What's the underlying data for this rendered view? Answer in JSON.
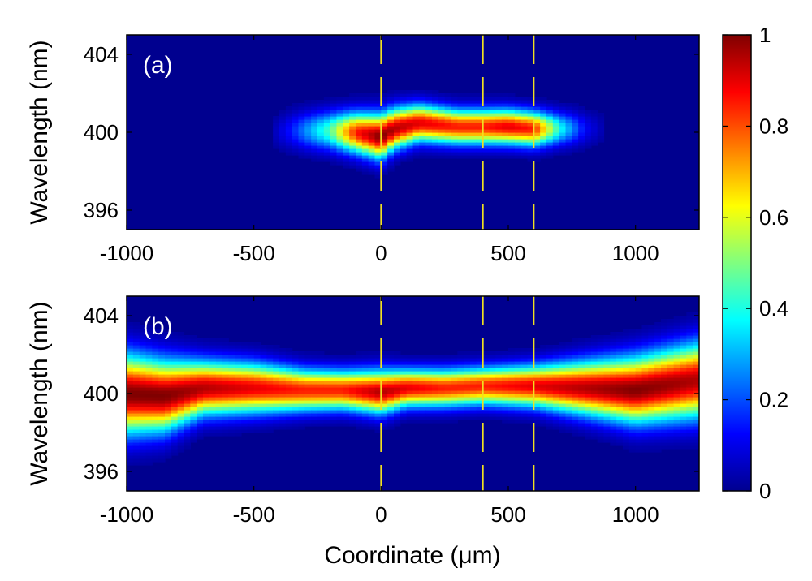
{
  "chart_data": [
    {
      "type": "heatmap",
      "panel_label": "(a)",
      "xlabel": "",
      "ylabel": "Wavelength (nm)",
      "xlim": [
        -1000,
        1250
      ],
      "ylim": [
        395,
        405
      ],
      "xticks": [
        -1000,
        -500,
        0,
        500,
        1000
      ],
      "yticks": [
        396,
        400,
        404
      ],
      "markers_x": [
        0,
        400,
        600
      ],
      "series": [
        {
          "name": "ridge",
          "points": [
            {
              "x": -450,
              "center": 400.0,
              "width": 0.8,
              "amp": 0.0
            },
            {
              "x": -350,
              "center": 400.1,
              "width": 0.9,
              "amp": 0.15
            },
            {
              "x": -200,
              "center": 400.1,
              "width": 0.95,
              "amp": 0.45
            },
            {
              "x": -100,
              "center": 400.0,
              "width": 1.0,
              "amp": 0.85
            },
            {
              "x": 0,
              "center": 399.8,
              "width": 1.1,
              "amp": 1.0
            },
            {
              "x": 50,
              "center": 400.2,
              "width": 1.0,
              "amp": 0.95
            },
            {
              "x": 150,
              "center": 400.5,
              "width": 0.9,
              "amp": 0.9
            },
            {
              "x": 300,
              "center": 400.3,
              "width": 0.85,
              "amp": 0.85
            },
            {
              "x": 400,
              "center": 400.3,
              "width": 0.85,
              "amp": 0.85
            },
            {
              "x": 500,
              "center": 400.3,
              "width": 0.85,
              "amp": 0.9
            },
            {
              "x": 600,
              "center": 400.2,
              "width": 0.85,
              "amp": 0.85
            },
            {
              "x": 700,
              "center": 400.2,
              "width": 0.8,
              "amp": 0.4
            },
            {
              "x": 800,
              "center": 400.2,
              "width": 0.8,
              "amp": 0.12
            },
            {
              "x": 900,
              "center": 400.2,
              "width": 0.8,
              "amp": 0.0
            }
          ]
        }
      ]
    },
    {
      "type": "heatmap",
      "panel_label": "(b)",
      "xlabel": "Coordinate (μm)",
      "ylabel": "Wavelength (nm)",
      "xlim": [
        -1000,
        1250
      ],
      "ylim": [
        395,
        405
      ],
      "xticks": [
        -1000,
        -500,
        0,
        500,
        1000
      ],
      "yticks": [
        396,
        400,
        404
      ],
      "markers_x": [
        0,
        400,
        600
      ],
      "series": [
        {
          "name": "ridge",
          "points": [
            {
              "x": -1000,
              "center": 400.0,
              "width": 1.9,
              "amp": 1.0
            },
            {
              "x": -850,
              "center": 399.9,
              "width": 1.7,
              "amp": 1.0
            },
            {
              "x": -700,
              "center": 400.3,
              "width": 1.3,
              "amp": 0.95
            },
            {
              "x": -500,
              "center": 400.3,
              "width": 1.2,
              "amp": 0.9
            },
            {
              "x": -300,
              "center": 400.2,
              "width": 1.0,
              "amp": 0.85
            },
            {
              "x": -150,
              "center": 400.2,
              "width": 0.95,
              "amp": 0.85
            },
            {
              "x": 0,
              "center": 400.1,
              "width": 1.05,
              "amp": 0.95
            },
            {
              "x": 100,
              "center": 400.3,
              "width": 0.9,
              "amp": 0.9
            },
            {
              "x": 250,
              "center": 400.3,
              "width": 0.9,
              "amp": 0.85
            },
            {
              "x": 400,
              "center": 400.4,
              "width": 0.9,
              "amp": 0.85
            },
            {
              "x": 600,
              "center": 400.4,
              "width": 1.0,
              "amp": 0.9
            },
            {
              "x": 800,
              "center": 400.3,
              "width": 1.3,
              "amp": 0.95
            },
            {
              "x": 1000,
              "center": 400.2,
              "width": 1.6,
              "amp": 1.0
            },
            {
              "x": 1250,
              "center": 400.7,
              "width": 1.8,
              "amp": 0.95
            }
          ]
        }
      ]
    }
  ],
  "colorbar": {
    "min": 0,
    "max": 1,
    "ticks": [
      "0",
      "0.2",
      "0.4",
      "0.6",
      "0.8",
      "1"
    ],
    "colormap": "jet"
  },
  "colors": {
    "marker_line": "#f0e020",
    "background_low": "#00008f",
    "axis": "#000000"
  }
}
